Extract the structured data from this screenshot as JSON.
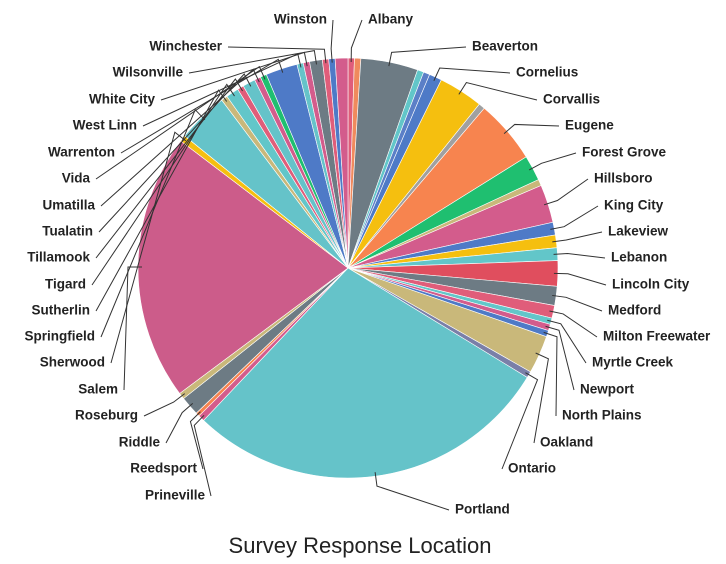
{
  "chart_data": {
    "type": "pie",
    "title": "Survey Response Location",
    "categories": [
      "Albany",
      null,
      "Beaverton",
      null,
      null,
      "Cornelius",
      "Corvallis",
      null,
      "Eugene",
      "Forest Grove",
      null,
      "Hillsboro",
      "King City",
      "Lakeview",
      "Lebanon",
      "Lincoln City",
      "Medford",
      "Milton Freewater",
      "Myrtle Creek",
      "Newport",
      "North Plains",
      "Oakland",
      "Ontario",
      "Portland",
      "Prineville",
      "Reedsport",
      "Riddle",
      "Roseburg",
      "Salem",
      "Sherwood",
      "Springfield",
      "Sutherlin",
      "Tigard",
      "Tillamook",
      "Tualatin",
      "Umatilla",
      "Vida",
      "Warrenton",
      "West Linn",
      "White City",
      "Wilsonville",
      "Winchester",
      "Winston",
      null
    ],
    "values": [
      0.5,
      0.5,
      4.5,
      0.5,
      0.5,
      1,
      3.5,
      0.5,
      5,
      2,
      0.5,
      3,
      1,
      1,
      1,
      2,
      1.5,
      1,
      0.5,
      0.5,
      0.5,
      3,
      0.5,
      29,
      0.5,
      0.3,
      1.5,
      0.5,
      21,
      0.5,
      4,
      0.5,
      1,
      0.5,
      1,
      0.5,
      0.5,
      2.5,
      0.5,
      0.5,
      1,
      0.5,
      0.5,
      1
    ],
    "colors": [
      "#e05d7a",
      "#f08a5d",
      "#6d7b84",
      "#62c6c9",
      "#5b7fc7",
      "#4e7ac7",
      "#f5bf0f",
      "#a0a0a0",
      "#f7844f",
      "#1fbf70",
      "#c9b87a",
      "#d35c8c",
      "#4e7ac7",
      "#f5bf0f",
      "#62c6c9",
      "#e04e5e",
      "#6d7b84",
      "#e05d7a",
      "#62c6c9",
      "#d35c8c",
      "#4e7ac7",
      "#c9b87a",
      "#7a7fa8",
      "#65c3c9",
      "#d35c8c",
      "#f7844f",
      "#6d7b84",
      "#c9b87a",
      "#cc5c8a",
      "#f5bf0f",
      "#65c3c9",
      "#c9b87a",
      "#62c6c9",
      "#e05d7a",
      "#65c3c9",
      "#d35c8c",
      "#1fbf70",
      "#4e7ac7",
      "#65c3c9",
      "#d35c8c",
      "#6d7b84",
      "#e05d7a",
      "#4e7ac7",
      "#d35c8c"
    ]
  }
}
